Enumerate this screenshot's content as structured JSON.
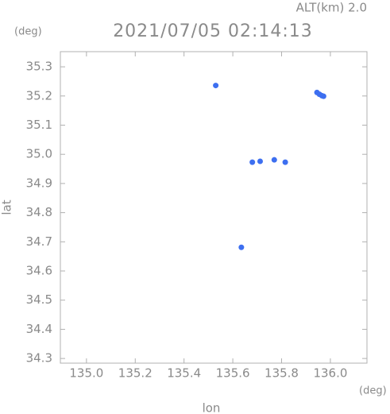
{
  "chart_data": {
    "type": "scatter",
    "title": "2021/07/05 02:14:13",
    "annotation": "ALT(km) 2.0",
    "x_unit": "(deg)",
    "y_unit": "(deg)",
    "x_label": "lon",
    "y_label": "lat",
    "xlim": [
      134.893,
      136.15
    ],
    "ylim": [
      34.284,
      35.352
    ],
    "xticks": [
      {
        "value": 135,
        "label": "135.0"
      },
      135.2,
      135.4,
      135.6,
      135.8,
      {
        "value": 136,
        "label": "136.0"
      }
    ],
    "yticks": [
      34.3,
      34.4,
      34.5,
      34.6,
      34.7,
      34.8,
      34.9,
      {
        "value": 35,
        "label": "35.0"
      },
      35.1,
      35.2,
      35.3
    ],
    "series": [
      {
        "name": "points",
        "color": "#3d6ff0",
        "x": [
          135.53,
          135.945,
          135.955,
          135.965,
          135.972,
          135.68,
          135.712,
          135.77,
          135.815,
          135.635
        ],
        "values": [
          35.236,
          35.212,
          35.206,
          35.201,
          35.199,
          34.973,
          34.976,
          34.981,
          34.973,
          34.681
        ]
      }
    ]
  }
}
